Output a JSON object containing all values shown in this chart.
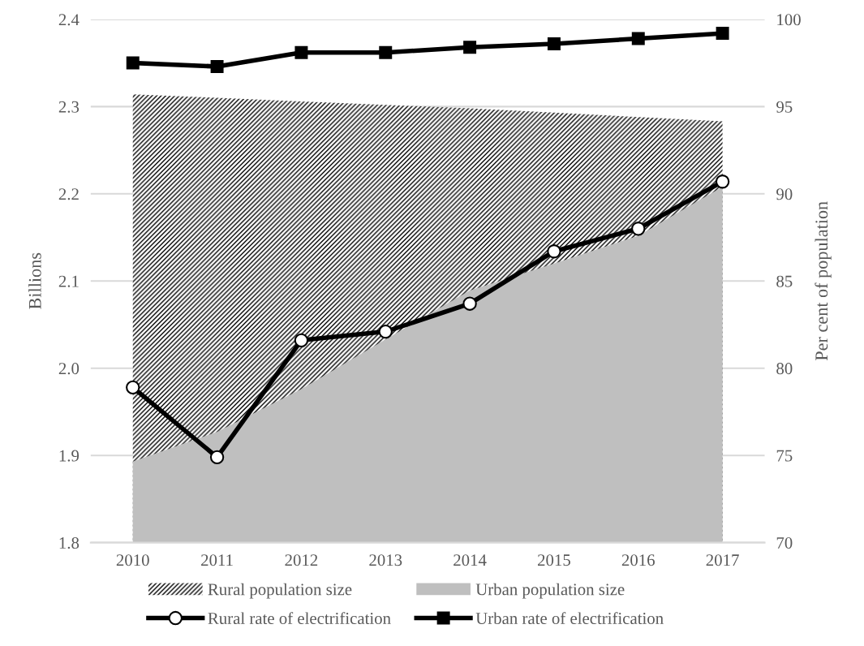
{
  "chart_data": {
    "type": "line",
    "categories": [
      "2010",
      "2011",
      "2012",
      "2013",
      "2014",
      "2015",
      "2016",
      "2017"
    ],
    "series": [
      {
        "name": "Rural population size",
        "type": "area",
        "color": "#000000",
        "values": [
          2.314,
          2.31,
          2.306,
          2.302,
          2.298,
          2.293,
          2.288,
          2.283
        ]
      },
      {
        "name": "Urban population size",
        "type": "area",
        "color": "#bfbfbf",
        "values": [
          1.893,
          1.927,
          1.976,
          2.033,
          2.089,
          2.12,
          2.152,
          2.208
        ]
      },
      {
        "name": "Rural rate of electrification",
        "axis": "y2",
        "marker": "circle",
        "color": "#000000",
        "values": [
          78.9,
          74.9,
          81.6,
          82.1,
          83.7,
          86.7,
          88.0,
          90.7
        ]
      },
      {
        "name": "Urban rate of electrification",
        "axis": "y2",
        "marker": "square",
        "color": "#000000",
        "values": [
          97.5,
          97.3,
          98.1,
          98.1,
          98.4,
          98.6,
          98.9,
          99.2
        ]
      }
    ],
    "ylabel": "Billions",
    "y2label": "Per cent of population",
    "ylim": [
      1.8,
      2.4
    ],
    "yticks": [
      {
        "value": 1.8,
        "label": "1.8"
      },
      {
        "value": 1.9,
        "label": "1.9"
      },
      {
        "value": 2.0,
        "label": "2.0"
      },
      {
        "value": 2.1,
        "label": "2.1"
      },
      {
        "value": 2.2,
        "label": "2.2"
      },
      {
        "value": 2.3,
        "label": "2.3"
      },
      {
        "value": 2.4,
        "label": "2.4"
      }
    ],
    "y2lim": [
      70,
      100
    ],
    "y2ticks": [
      70,
      75,
      80,
      85,
      90,
      95,
      100
    ],
    "grid": "y",
    "legend": "bottom"
  }
}
